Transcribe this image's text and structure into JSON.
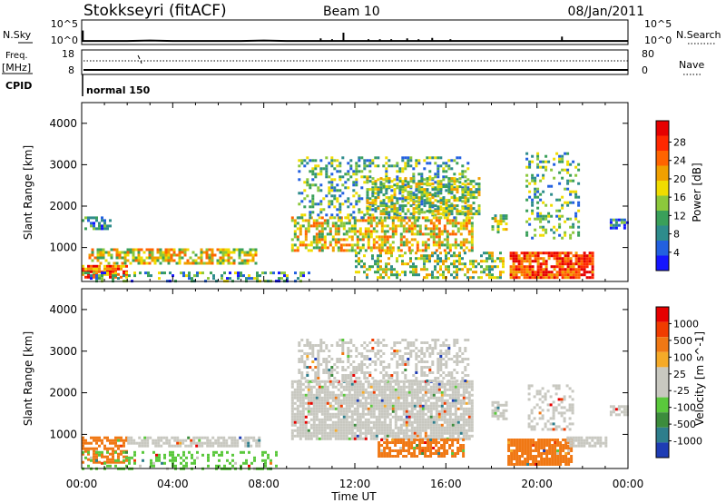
{
  "header": {
    "title": "Stokkseyri (fitACF)",
    "beam": "Beam 10",
    "date": "08/Jan/2011"
  },
  "nsky_panel": {
    "left_label": "N.Sky",
    "right_label": "N.Search",
    "tick_top": "10^5",
    "tick_bottom": "10^0",
    "ylim_exp": [
      0,
      5
    ],
    "nsky_exp": [
      0.6,
      0.6,
      0.6,
      0.7,
      0.6,
      0.6,
      0.6,
      0.6,
      0.7,
      0.6,
      0.6,
      0.6,
      0.6,
      0.6,
      0.6,
      0.6,
      0.6,
      0.6,
      0.6,
      0.6,
      0.6,
      0.6,
      0.6,
      0.6,
      0.6
    ],
    "spikes": [
      [
        0.05,
        3.0
      ],
      [
        10.5,
        1.2
      ],
      [
        11.0,
        1.0
      ],
      [
        11.5,
        2.5
      ],
      [
        12.6,
        1.0
      ],
      [
        13.1,
        1.0
      ],
      [
        13.6,
        1.0
      ],
      [
        14.3,
        1.2
      ],
      [
        14.8,
        1.0
      ],
      [
        15.4,
        1.3
      ],
      [
        16.2,
        1.0
      ],
      [
        21.1,
        1.6
      ]
    ]
  },
  "freq_panel": {
    "left_label_1": "Freq.",
    "left_label_2": "[MHz]",
    "cpid_label": "CPID",
    "right_label": "Nave",
    "left_ticks": [
      "18",
      "8"
    ],
    "right_ticks": [
      "80",
      "0"
    ],
    "freq_mhz": 10.2,
    "nave_dotted": 62,
    "mode_label": "normal 150"
  },
  "chart_data": [
    {
      "type": "heatmap",
      "title": "",
      "xlabel": "",
      "ylabel": "Slant Range [km]",
      "x_ticks": [
        "00:00",
        "04:00",
        "08:00",
        "12:00",
        "16:00",
        "20:00",
        "00:00"
      ],
      "y_ticks": [
        "1000",
        "2000",
        "3000",
        "4000"
      ],
      "xlim_hours": [
        0,
        24
      ],
      "ylim_km": [
        180,
        4500
      ],
      "colorbar": {
        "label": "Power [dB]",
        "ticks": [
          "4",
          "8",
          "12",
          "16",
          "20",
          "24",
          "28"
        ],
        "colors": [
          "#1515ff",
          "#2260e0",
          "#2e8c8c",
          "#3aa05a",
          "#8cc83c",
          "#f0dc00",
          "#f0a000",
          "#ff6400",
          "#ff2800",
          "#e60000"
        ]
      },
      "echo_regions": [
        {
          "t": [
            0.0,
            1.2
          ],
          "r": [
            1450,
            1750
          ],
          "level": 0.25,
          "density": 0.55
        },
        {
          "t": [
            0.0,
            2.0
          ],
          "r": [
            280,
            580
          ],
          "level": 0.75,
          "density": 0.75
        },
        {
          "t": [
            0.3,
            7.6
          ],
          "r": [
            600,
            980
          ],
          "level": 0.55,
          "density": 0.65
        },
        {
          "t": [
            0.0,
            10.0
          ],
          "r": [
            200,
            420
          ],
          "level": 0.3,
          "density": 0.35
        },
        {
          "t": [
            9.2,
            17.2
          ],
          "r": [
            900,
            1750
          ],
          "level": 0.55,
          "density": 0.6
        },
        {
          "t": [
            9.5,
            17.0
          ],
          "r": [
            1700,
            3200
          ],
          "level": 0.35,
          "density": 0.35
        },
        {
          "t": [
            12.5,
            17.5
          ],
          "r": [
            1800,
            2700
          ],
          "level": 0.45,
          "density": 0.5
        },
        {
          "t": [
            12.0,
            18.5
          ],
          "r": [
            300,
            900
          ],
          "level": 0.45,
          "density": 0.45
        },
        {
          "t": [
            18.0,
            18.7
          ],
          "r": [
            1400,
            1800
          ],
          "level": 0.45,
          "density": 0.6
        },
        {
          "t": [
            18.8,
            22.5
          ],
          "r": [
            300,
            900
          ],
          "level": 0.85,
          "density": 0.8
        },
        {
          "t": [
            19.5,
            21.8
          ],
          "r": [
            1200,
            3300
          ],
          "level": 0.35,
          "density": 0.3
        },
        {
          "t": [
            23.2,
            24.0
          ],
          "r": [
            1500,
            1700
          ],
          "level": 0.25,
          "density": 0.7
        }
      ]
    },
    {
      "type": "heatmap",
      "title": "",
      "xlabel": "Time UT",
      "ylabel": "Slant Range [km]",
      "x_ticks": [
        "00:00",
        "04:00",
        "08:00",
        "12:00",
        "16:00",
        "20:00",
        "00:00"
      ],
      "y_ticks": [
        "1000",
        "2000",
        "3000",
        "4000"
      ],
      "xlim_hours": [
        0,
        24
      ],
      "ylim_km": [
        180,
        4500
      ],
      "colorbar": {
        "label": "Velocity [m s^-1]",
        "ticks": [
          "1000",
          "500",
          "100",
          "25",
          "-25",
          "-100",
          "-500",
          "-1000"
        ],
        "colors": [
          "#1e3cb4",
          "#2e7e8c",
          "#3c8c3c",
          "#5ac83c",
          "#c8c8c0",
          "#c8c8c0",
          "#f5aa28",
          "#f07814",
          "#f03c00",
          "#e60000"
        ]
      },
      "echo_regions": [
        {
          "t": [
            0.0,
            2.0
          ],
          "r": [
            300,
            950
          ],
          "color": "#f07814",
          "density": 0.6
        },
        {
          "t": [
            0.0,
            8.5
          ],
          "r": [
            200,
            600
          ],
          "color": "#5ac83c",
          "density": 0.3
        },
        {
          "t": [
            2.0,
            7.8
          ],
          "r": [
            700,
            950
          ],
          "color": "#c8c8c0",
          "density": 0.7
        },
        {
          "t": [
            9.2,
            17.2
          ],
          "r": [
            900,
            2300
          ],
          "color": "#c8c8c0",
          "density": 0.85
        },
        {
          "t": [
            9.5,
            17.0
          ],
          "r": [
            2300,
            3300
          ],
          "color": "#c8c8c0",
          "density": 0.45
        },
        {
          "t": [
            13.0,
            16.8
          ],
          "r": [
            450,
            900
          ],
          "color": "#f07814",
          "density": 0.7
        },
        {
          "t": [
            18.0,
            18.7
          ],
          "r": [
            1400,
            1800
          ],
          "color": "#c8c8c0",
          "density": 0.8
        },
        {
          "t": [
            18.7,
            21.5
          ],
          "r": [
            300,
            900
          ],
          "color": "#f07814",
          "density": 0.85
        },
        {
          "t": [
            19.6,
            21.6
          ],
          "r": [
            1100,
            2200
          ],
          "color": "#c8c8c0",
          "density": 0.4
        },
        {
          "t": [
            21.3,
            23.0
          ],
          "r": [
            700,
            950
          ],
          "color": "#c8c8c0",
          "density": 0.8
        },
        {
          "t": [
            23.2,
            24.0
          ],
          "r": [
            1500,
            1700
          ],
          "color": "#c8c8c0",
          "density": 0.7
        }
      ]
    }
  ]
}
